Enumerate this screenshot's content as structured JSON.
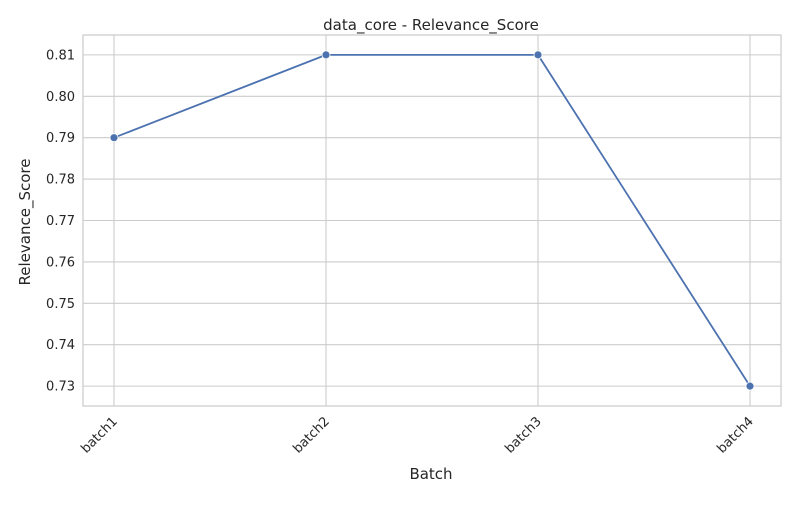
{
  "chart_data": {
    "type": "line",
    "title": "data_core - Relevance_Score",
    "xlabel": "Batch",
    "ylabel": "Relevance_Score",
    "categories": [
      "batch1",
      "batch2",
      "batch3",
      "batch4"
    ],
    "series": [
      {
        "values": [
          0.79,
          0.81,
          0.81,
          0.73
        ]
      }
    ],
    "ylim": [
      0.7252,
      0.8148
    ],
    "yticks": [
      0.73,
      0.74,
      0.75,
      0.76,
      0.77,
      0.78,
      0.79,
      0.8,
      0.81
    ],
    "ytick_labels": [
      "0.73",
      "0.74",
      "0.75",
      "0.76",
      "0.77",
      "0.78",
      "0.79",
      "0.80",
      "0.81"
    ],
    "grid": true,
    "legend": "none",
    "colors": {
      "line": "#4c72b0",
      "grid": "#cccccc",
      "axes": "#cccccc",
      "text": "#262626"
    }
  }
}
